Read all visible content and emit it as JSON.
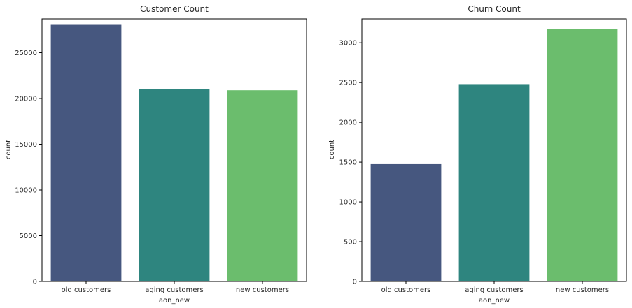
{
  "chart_data": [
    {
      "type": "bar",
      "title": "Customer Count",
      "xlabel": "aon_new",
      "ylabel": "count",
      "categories": [
        "old customers",
        "aging customers",
        "new customers"
      ],
      "values": [
        28050,
        21000,
        20900
      ],
      "colors": [
        "#46577f",
        "#2e857f",
        "#6bbd6d"
      ],
      "ylim": [
        0,
        28700
      ],
      "yticks": [
        0,
        5000,
        10000,
        15000,
        20000,
        25000
      ],
      "grid": false,
      "legend": "none"
    },
    {
      "type": "bar",
      "title": "Churn Count",
      "xlabel": "aon_new",
      "ylabel": "count",
      "categories": [
        "old customers",
        "aging customers",
        "new customers"
      ],
      "values": [
        1475,
        2480,
        3175
      ],
      "colors": [
        "#46577f",
        "#2e857f",
        "#6bbd6d"
      ],
      "ylim": [
        0,
        3300
      ],
      "yticks": [
        0,
        500,
        1000,
        1500,
        2000,
        2500,
        3000
      ],
      "grid": false,
      "legend": "none"
    }
  ]
}
